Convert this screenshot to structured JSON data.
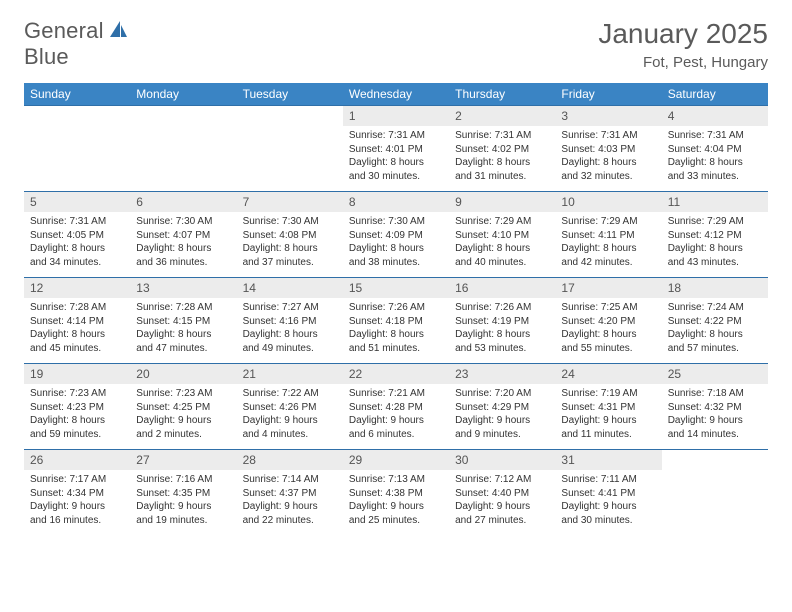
{
  "brand": {
    "word1": "General",
    "word2": "Blue"
  },
  "title": "January 2025",
  "location": "Fot, Pest, Hungary",
  "colors": {
    "header_bg": "#3a84c4",
    "row_border": "#2f6fa8",
    "daynum_bg": "#ececec",
    "text_dark": "#333333",
    "text_muted": "#5a5a5a"
  },
  "day_headers": [
    "Sunday",
    "Monday",
    "Tuesday",
    "Wednesday",
    "Thursday",
    "Friday",
    "Saturday"
  ],
  "weeks": [
    [
      {
        "empty": true
      },
      {
        "empty": true
      },
      {
        "empty": true
      },
      {
        "day": "1",
        "sunrise": "Sunrise: 7:31 AM",
        "sunset": "Sunset: 4:01 PM",
        "dl1": "Daylight: 8 hours",
        "dl2": "and 30 minutes."
      },
      {
        "day": "2",
        "sunrise": "Sunrise: 7:31 AM",
        "sunset": "Sunset: 4:02 PM",
        "dl1": "Daylight: 8 hours",
        "dl2": "and 31 minutes."
      },
      {
        "day": "3",
        "sunrise": "Sunrise: 7:31 AM",
        "sunset": "Sunset: 4:03 PM",
        "dl1": "Daylight: 8 hours",
        "dl2": "and 32 minutes."
      },
      {
        "day": "4",
        "sunrise": "Sunrise: 7:31 AM",
        "sunset": "Sunset: 4:04 PM",
        "dl1": "Daylight: 8 hours",
        "dl2": "and 33 minutes."
      }
    ],
    [
      {
        "day": "5",
        "sunrise": "Sunrise: 7:31 AM",
        "sunset": "Sunset: 4:05 PM",
        "dl1": "Daylight: 8 hours",
        "dl2": "and 34 minutes."
      },
      {
        "day": "6",
        "sunrise": "Sunrise: 7:30 AM",
        "sunset": "Sunset: 4:07 PM",
        "dl1": "Daylight: 8 hours",
        "dl2": "and 36 minutes."
      },
      {
        "day": "7",
        "sunrise": "Sunrise: 7:30 AM",
        "sunset": "Sunset: 4:08 PM",
        "dl1": "Daylight: 8 hours",
        "dl2": "and 37 minutes."
      },
      {
        "day": "8",
        "sunrise": "Sunrise: 7:30 AM",
        "sunset": "Sunset: 4:09 PM",
        "dl1": "Daylight: 8 hours",
        "dl2": "and 38 minutes."
      },
      {
        "day": "9",
        "sunrise": "Sunrise: 7:29 AM",
        "sunset": "Sunset: 4:10 PM",
        "dl1": "Daylight: 8 hours",
        "dl2": "and 40 minutes."
      },
      {
        "day": "10",
        "sunrise": "Sunrise: 7:29 AM",
        "sunset": "Sunset: 4:11 PM",
        "dl1": "Daylight: 8 hours",
        "dl2": "and 42 minutes."
      },
      {
        "day": "11",
        "sunrise": "Sunrise: 7:29 AM",
        "sunset": "Sunset: 4:12 PM",
        "dl1": "Daylight: 8 hours",
        "dl2": "and 43 minutes."
      }
    ],
    [
      {
        "day": "12",
        "sunrise": "Sunrise: 7:28 AM",
        "sunset": "Sunset: 4:14 PM",
        "dl1": "Daylight: 8 hours",
        "dl2": "and 45 minutes."
      },
      {
        "day": "13",
        "sunrise": "Sunrise: 7:28 AM",
        "sunset": "Sunset: 4:15 PM",
        "dl1": "Daylight: 8 hours",
        "dl2": "and 47 minutes."
      },
      {
        "day": "14",
        "sunrise": "Sunrise: 7:27 AM",
        "sunset": "Sunset: 4:16 PM",
        "dl1": "Daylight: 8 hours",
        "dl2": "and 49 minutes."
      },
      {
        "day": "15",
        "sunrise": "Sunrise: 7:26 AM",
        "sunset": "Sunset: 4:18 PM",
        "dl1": "Daylight: 8 hours",
        "dl2": "and 51 minutes."
      },
      {
        "day": "16",
        "sunrise": "Sunrise: 7:26 AM",
        "sunset": "Sunset: 4:19 PM",
        "dl1": "Daylight: 8 hours",
        "dl2": "and 53 minutes."
      },
      {
        "day": "17",
        "sunrise": "Sunrise: 7:25 AM",
        "sunset": "Sunset: 4:20 PM",
        "dl1": "Daylight: 8 hours",
        "dl2": "and 55 minutes."
      },
      {
        "day": "18",
        "sunrise": "Sunrise: 7:24 AM",
        "sunset": "Sunset: 4:22 PM",
        "dl1": "Daylight: 8 hours",
        "dl2": "and 57 minutes."
      }
    ],
    [
      {
        "day": "19",
        "sunrise": "Sunrise: 7:23 AM",
        "sunset": "Sunset: 4:23 PM",
        "dl1": "Daylight: 8 hours",
        "dl2": "and 59 minutes."
      },
      {
        "day": "20",
        "sunrise": "Sunrise: 7:23 AM",
        "sunset": "Sunset: 4:25 PM",
        "dl1": "Daylight: 9 hours",
        "dl2": "and 2 minutes."
      },
      {
        "day": "21",
        "sunrise": "Sunrise: 7:22 AM",
        "sunset": "Sunset: 4:26 PM",
        "dl1": "Daylight: 9 hours",
        "dl2": "and 4 minutes."
      },
      {
        "day": "22",
        "sunrise": "Sunrise: 7:21 AM",
        "sunset": "Sunset: 4:28 PM",
        "dl1": "Daylight: 9 hours",
        "dl2": "and 6 minutes."
      },
      {
        "day": "23",
        "sunrise": "Sunrise: 7:20 AM",
        "sunset": "Sunset: 4:29 PM",
        "dl1": "Daylight: 9 hours",
        "dl2": "and 9 minutes."
      },
      {
        "day": "24",
        "sunrise": "Sunrise: 7:19 AM",
        "sunset": "Sunset: 4:31 PM",
        "dl1": "Daylight: 9 hours",
        "dl2": "and 11 minutes."
      },
      {
        "day": "25",
        "sunrise": "Sunrise: 7:18 AM",
        "sunset": "Sunset: 4:32 PM",
        "dl1": "Daylight: 9 hours",
        "dl2": "and 14 minutes."
      }
    ],
    [
      {
        "day": "26",
        "sunrise": "Sunrise: 7:17 AM",
        "sunset": "Sunset: 4:34 PM",
        "dl1": "Daylight: 9 hours",
        "dl2": "and 16 minutes."
      },
      {
        "day": "27",
        "sunrise": "Sunrise: 7:16 AM",
        "sunset": "Sunset: 4:35 PM",
        "dl1": "Daylight: 9 hours",
        "dl2": "and 19 minutes."
      },
      {
        "day": "28",
        "sunrise": "Sunrise: 7:14 AM",
        "sunset": "Sunset: 4:37 PM",
        "dl1": "Daylight: 9 hours",
        "dl2": "and 22 minutes."
      },
      {
        "day": "29",
        "sunrise": "Sunrise: 7:13 AM",
        "sunset": "Sunset: 4:38 PM",
        "dl1": "Daylight: 9 hours",
        "dl2": "and 25 minutes."
      },
      {
        "day": "30",
        "sunrise": "Sunrise: 7:12 AM",
        "sunset": "Sunset: 4:40 PM",
        "dl1": "Daylight: 9 hours",
        "dl2": "and 27 minutes."
      },
      {
        "day": "31",
        "sunrise": "Sunrise: 7:11 AM",
        "sunset": "Sunset: 4:41 PM",
        "dl1": "Daylight: 9 hours",
        "dl2": "and 30 minutes."
      },
      {
        "empty": true
      }
    ]
  ]
}
